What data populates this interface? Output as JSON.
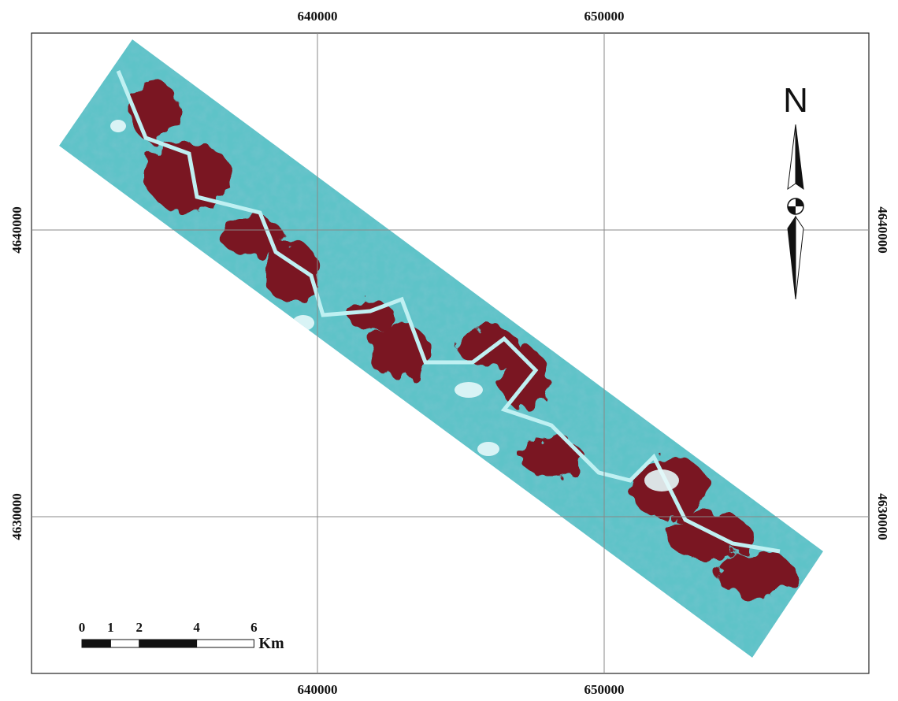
{
  "map": {
    "x_labels": [
      640000,
      650000
    ],
    "y_labels": [
      4640000,
      4630000
    ],
    "north": "N",
    "scale_bar": {
      "ticks": [
        0,
        1,
        2,
        4,
        6
      ],
      "unit": "Km"
    }
  }
}
